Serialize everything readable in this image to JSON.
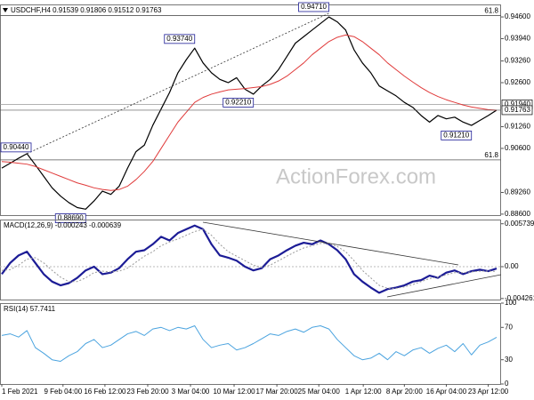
{
  "chart_data": [
    {
      "type": "line",
      "title": "USDCHF,H4 0.91539 0.91806 0.91512 0.91763",
      "ylim": [
        0.8857,
        0.9498
      ],
      "yticks": [
        {
          "value": 0.946,
          "label": "0.94600"
        },
        {
          "value": 0.9394,
          "label": "0.93940"
        },
        {
          "value": 0.9326,
          "label": "0.93260"
        },
        {
          "value": 0.926,
          "label": "0.92600"
        },
        {
          "value": 0.9126,
          "label": "0.91260"
        },
        {
          "value": 0.906,
          "label": "0.90600"
        },
        {
          "value": 0.8926,
          "label": "0.89260"
        },
        {
          "value": 0.886,
          "label": "0.88600"
        }
      ],
      "series": [
        {
          "color": "#000000",
          "width": 1.2,
          "values": [
            0.9,
            0.9015,
            0.903,
            0.9044,
            0.901,
            0.8975,
            0.894,
            0.8915,
            0.8895,
            0.888,
            0.8875,
            0.89,
            0.893,
            0.892,
            0.8945,
            0.9,
            0.905,
            0.907,
            0.913,
            0.918,
            0.923,
            0.929,
            0.933,
            0.9365,
            0.932,
            0.929,
            0.927,
            0.926,
            0.9275,
            0.924,
            0.9225,
            0.925,
            0.927,
            0.93,
            0.934,
            0.938,
            0.94,
            0.942,
            0.944,
            0.946,
            0.9445,
            0.942,
            0.936,
            0.932,
            0.929,
            0.925,
            0.9235,
            0.922,
            0.92,
            0.9185,
            0.916,
            0.914,
            0.916,
            0.915,
            0.9155,
            0.914,
            0.913,
            0.9145,
            0.916,
            0.91763
          ]
        },
        {
          "color": "#e03a3a",
          "width": 1,
          "values": [
            0.902,
            0.9018,
            0.9015,
            0.9012,
            0.9005,
            0.8995,
            0.8985,
            0.8975,
            0.8965,
            0.8955,
            0.8948,
            0.894,
            0.8935,
            0.8932,
            0.8935,
            0.8945,
            0.8965,
            0.899,
            0.902,
            0.906,
            0.91,
            0.914,
            0.917,
            0.92,
            0.9215,
            0.9225,
            0.9232,
            0.9238,
            0.924,
            0.9242,
            0.9245,
            0.9248,
            0.9255,
            0.9265,
            0.928,
            0.93,
            0.932,
            0.9345,
            0.9365,
            0.9385,
            0.9398,
            0.9405,
            0.94,
            0.9385,
            0.9365,
            0.9345,
            0.932,
            0.93,
            0.928,
            0.9262,
            0.9245,
            0.923,
            0.9218,
            0.9208,
            0.92,
            0.9192,
            0.9186,
            0.9182,
            0.9178,
            0.9176
          ]
        }
      ],
      "levels": [
        {
          "value": 0.9464,
          "label": "61.8"
        },
        {
          "value": 0.9025,
          "label": "61.8"
        }
      ],
      "marker_line": {
        "value": 0.9194,
        "label": "0.91940"
      },
      "annotations": [
        {
          "label": "0.90440",
          "value": 0.9044,
          "x": 3
        },
        {
          "label": "0.88690",
          "value": 0.8869,
          "x": 10
        },
        {
          "label": "0.93740",
          "value": 0.9374,
          "x": 23
        },
        {
          "label": "0.92210",
          "value": 0.9221,
          "x": 30
        },
        {
          "label": "0.94710",
          "value": 0.9471,
          "x": 39
        },
        {
          "label": "0.91210",
          "value": 0.9121,
          "x": 56
        }
      ]
    },
    {
      "type": "line",
      "title": "MACD(12,26,9) -0.000243 -0.000639",
      "ylim": [
        -0.0044,
        0.0063
      ],
      "yticks": [
        0.005739,
        {
          "value": 0,
          "label": "0.00"
        },
        -0.004261
      ],
      "series": [
        {
          "color": "#1c1c96",
          "width": 2.2,
          "values": [
            -0.001,
            0.0005,
            0.0015,
            0.002,
            0.0005,
            -0.001,
            -0.002,
            -0.0025,
            -0.0022,
            -0.0015,
            -0.0005,
            0.0,
            -0.001,
            -0.0008,
            -0.0002,
            0.001,
            0.002,
            0.0022,
            0.003,
            0.004,
            0.0035,
            0.0045,
            0.005,
            0.0055,
            0.005,
            0.003,
            0.0015,
            0.0012,
            0.0008,
            0.0,
            -0.0005,
            -0.0002,
            0.001,
            0.0015,
            0.0022,
            0.0028,
            0.0032,
            0.003,
            0.0035,
            0.003,
            0.0022,
            0.001,
            -0.001,
            -0.002,
            -0.0028,
            -0.0035,
            -0.003,
            -0.0028,
            -0.0025,
            -0.002,
            -0.0018,
            -0.0012,
            -0.0015,
            -0.0008,
            -0.0005,
            -0.001,
            -0.0006,
            -0.0004,
            -0.0006,
            -0.000243
          ]
        },
        {
          "color": "#9a9a9a",
          "width": 1,
          "dotted": true,
          "values": [
            -0.0005,
            -0.0004,
            0.0002,
            0.001,
            0.0012,
            0.0005,
            -0.0005,
            -0.0014,
            -0.002,
            -0.002,
            -0.0015,
            -0.0008,
            -0.0006,
            -0.0007,
            -0.0006,
            -0.0002,
            0.0006,
            0.0014,
            0.002,
            0.0028,
            0.0033,
            0.0037,
            0.0042,
            0.0047,
            0.005,
            0.0042,
            0.003,
            0.002,
            0.0014,
            0.0008,
            0.0002,
            -0.0001,
            0.0002,
            0.0008,
            0.0014,
            0.002,
            0.0025,
            0.0028,
            0.0031,
            0.0031,
            0.0027,
            0.002,
            0.0008,
            -0.0005,
            -0.0015,
            -0.0025,
            -0.0029,
            -0.0029,
            -0.0027,
            -0.0024,
            -0.002,
            -0.0016,
            -0.0014,
            -0.0011,
            -0.0008,
            -0.0008,
            -0.0007,
            -0.0006,
            -0.0006,
            -0.000639
          ]
        }
      ]
    },
    {
      "type": "line",
      "title": "RSI(14) 57.7411",
      "ylim": [
        0,
        100
      ],
      "yticks": [
        100,
        70,
        30,
        0
      ],
      "series": [
        {
          "color": "#4aa3df",
          "width": 1,
          "values": [
            60,
            62,
            58,
            66,
            45,
            38,
            30,
            28,
            35,
            40,
            50,
            55,
            45,
            48,
            55,
            62,
            65,
            60,
            68,
            70,
            66,
            70,
            68,
            72,
            55,
            45,
            48,
            50,
            42,
            45,
            50,
            56,
            62,
            60,
            65,
            68,
            64,
            70,
            72,
            68,
            55,
            45,
            35,
            30,
            32,
            38,
            30,
            40,
            35,
            42,
            45,
            38,
            44,
            48,
            40,
            50,
            36,
            48,
            52,
            57.7411
          ]
        }
      ],
      "xlim": [
        0,
        59
      ],
      "xticks": [
        {
          "value": 0,
          "label": "1 Feb 2021"
        },
        {
          "value": 7.3,
          "label": "9 Feb 04:00"
        },
        {
          "value": 12.3,
          "label": "16 Feb 12:00"
        },
        {
          "value": 17.4,
          "label": "23 Feb 20:00"
        },
        {
          "value": 22.5,
          "label": "3 Mar 04:00"
        },
        {
          "value": 27.7,
          "label": "10 Mar 12:00"
        },
        {
          "value": 32.8,
          "label": "17 Mar 20:00"
        },
        {
          "value": 37.8,
          "label": "25 Mar 04:00"
        },
        {
          "value": 43.1,
          "label": "1 Apr 12:00"
        },
        {
          "value": 48,
          "label": "8 Apr 20:00"
        },
        {
          "value": 53,
          "label": "16 Apr 04:00"
        },
        {
          "value": 58,
          "label": "23 Apr 12:00"
        }
      ]
    }
  ],
  "watermark": "ActionForex.com"
}
